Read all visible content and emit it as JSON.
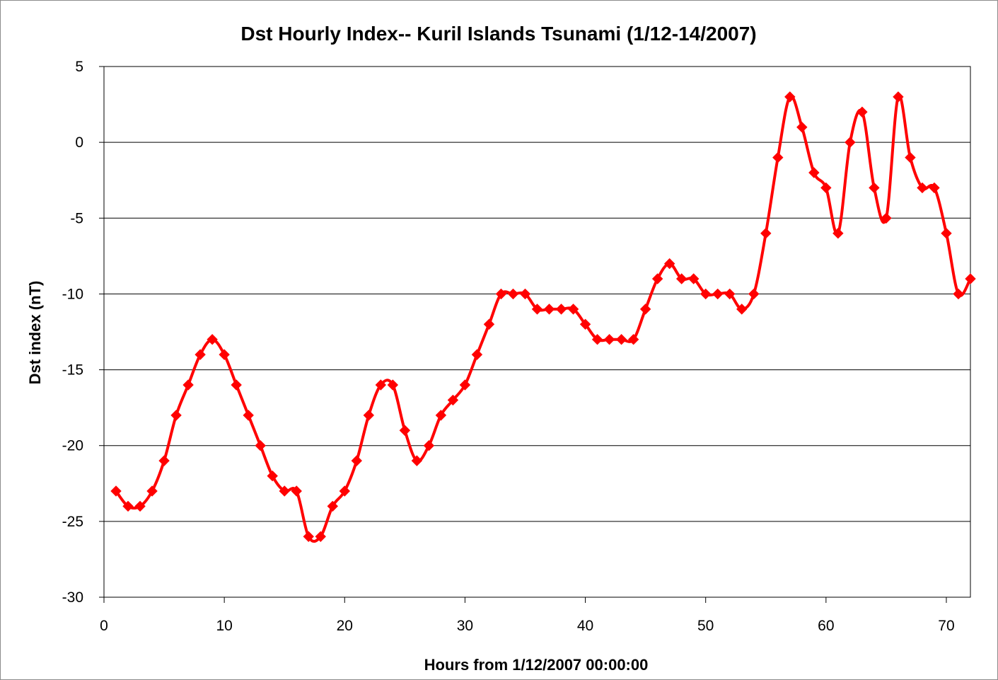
{
  "chart_data": {
    "type": "line",
    "title": "Dst Hourly Index-- Kuril Islands Tsunami (1/12-14/2007)",
    "xlabel": "Hours from 1/12/2007 00:00:00",
    "ylabel": "Dst index (nT)",
    "xlim": [
      0,
      72
    ],
    "ylim": [
      -30,
      5
    ],
    "x_ticks": [
      0,
      10,
      20,
      30,
      40,
      50,
      60,
      70
    ],
    "y_ticks": [
      5,
      0,
      -5,
      -10,
      -15,
      -20,
      -25,
      -30
    ],
    "grid": "horizontal",
    "legend": "none",
    "series": [
      {
        "color": "#ff0000",
        "marker": "diamond",
        "smooth": true,
        "x": [
          1,
          2,
          3,
          4,
          5,
          6,
          7,
          8,
          9,
          10,
          11,
          12,
          13,
          14,
          15,
          16,
          17,
          18,
          19,
          20,
          21,
          22,
          23,
          24,
          25,
          26,
          27,
          28,
          29,
          30,
          31,
          32,
          33,
          34,
          35,
          36,
          37,
          38,
          39,
          40,
          41,
          42,
          43,
          44,
          45,
          46,
          47,
          48,
          49,
          50,
          51,
          52,
          53,
          54,
          55,
          56,
          57,
          58,
          59,
          60,
          61,
          62,
          63,
          64,
          65,
          66,
          67,
          68,
          69,
          70,
          71,
          72
        ],
        "y": [
          -23,
          -24,
          -24,
          -23,
          -21,
          -18,
          -16,
          -14,
          -13,
          -14,
          -16,
          -18,
          -20,
          -22,
          -23,
          -23,
          -26,
          -26,
          -24,
          -23,
          -21,
          -18,
          -16,
          -16,
          -19,
          -21,
          -20,
          -18,
          -17,
          -16,
          -14,
          -12,
          -10,
          -10,
          -10,
          -11,
          -11,
          -11,
          -11,
          -12,
          -13,
          -13,
          -13,
          -13,
          -11,
          -9,
          -8,
          -9,
          -9,
          -10,
          -10,
          -10,
          -11,
          -10,
          -6,
          -1,
          3,
          1,
          -2,
          -3,
          -6,
          0,
          2,
          -3,
          -5,
          3,
          -1,
          -3,
          -3,
          -6,
          -10,
          -9
        ]
      }
    ]
  }
}
